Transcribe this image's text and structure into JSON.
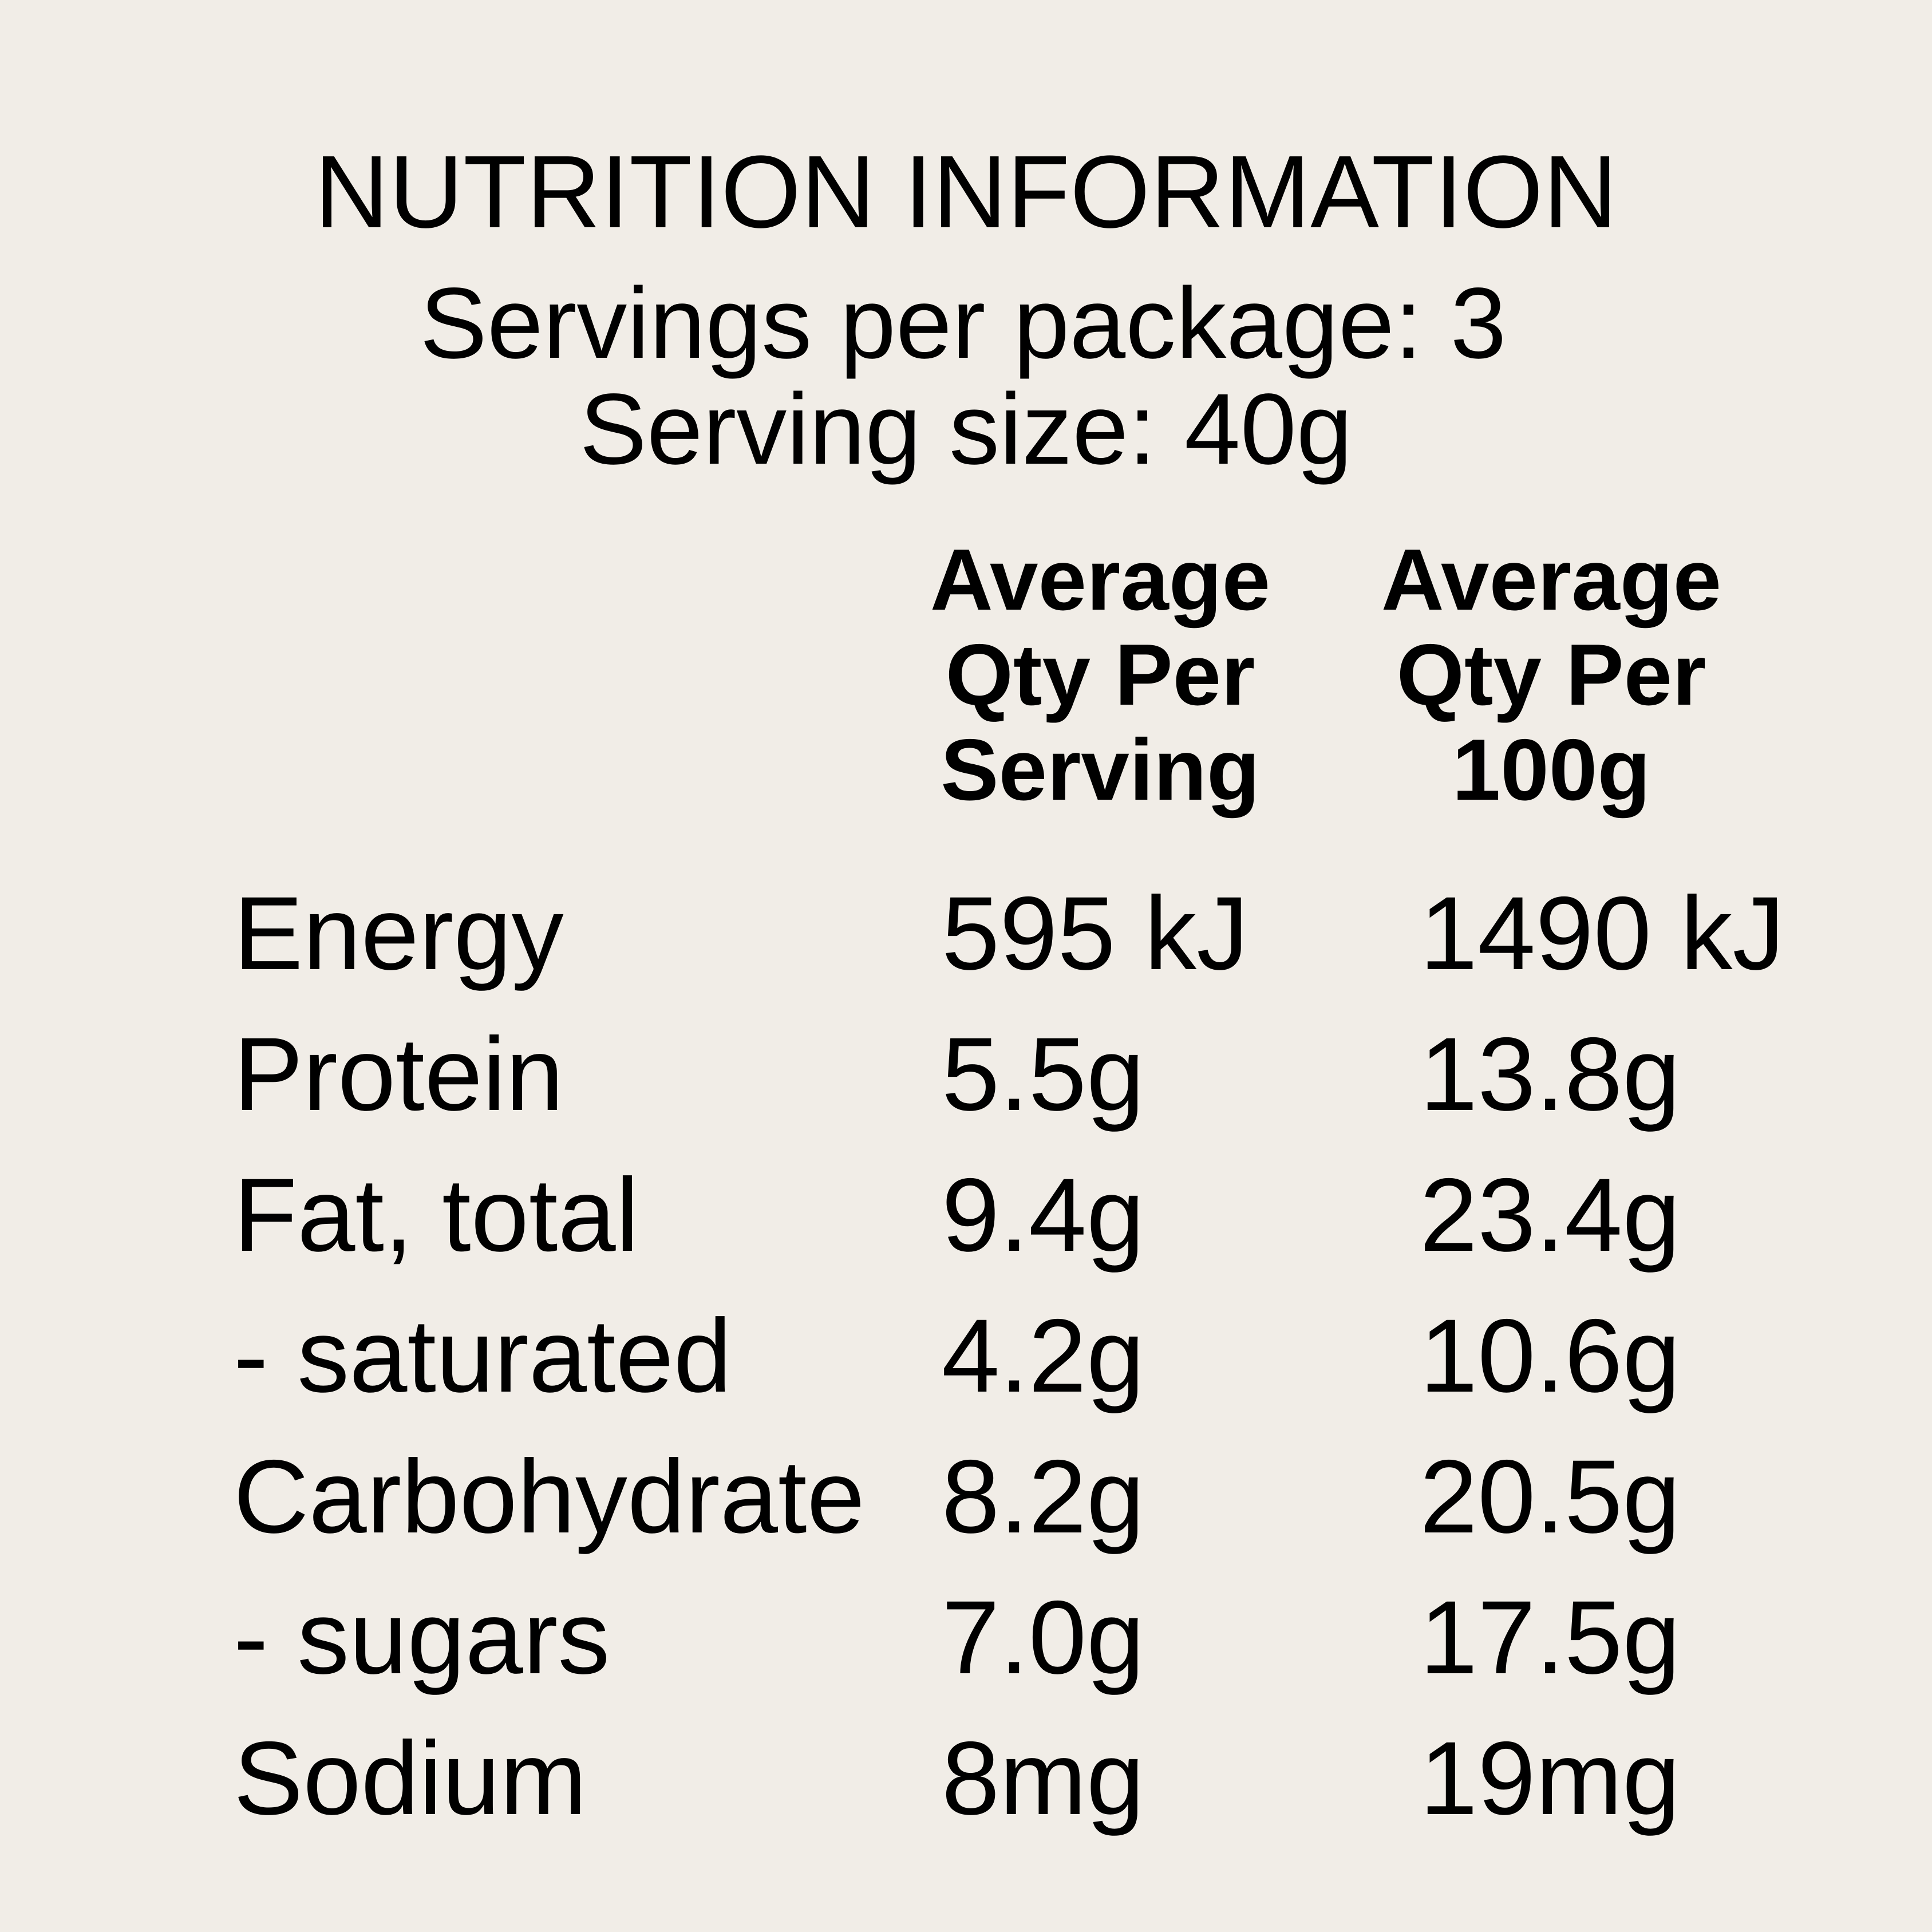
{
  "label": {
    "title": "NUTRITION INFORMATION",
    "servings_per_package": "Servings per package: 3",
    "serving_size": "Serving size: 40g",
    "columns": [
      {
        "lines": [
          "Average",
          "Qty Per",
          "Serving"
        ]
      },
      {
        "lines": [
          "Average",
          "Qty Per",
          "100g"
        ]
      }
    ],
    "rows": [
      {
        "name": "Energy",
        "per_serving": "595 kJ",
        "per_100g": "1490 kJ"
      },
      {
        "name": "Protein",
        "per_serving": "5.5g",
        "per_100g": "13.8g"
      },
      {
        "name": "Fat, total",
        "per_serving": "9.4g",
        "per_100g": "23.4g"
      },
      {
        "name": "- saturated",
        "per_serving": "4.2g",
        "per_100g": "10.6g"
      },
      {
        "name": "Carbohydrate",
        "per_serving": "8.2g",
        "per_100g": "20.5g"
      },
      {
        "name": "- sugars",
        "per_serving": "7.0g",
        "per_100g": "17.5g"
      },
      {
        "name": "Sodium",
        "per_serving": "8mg",
        "per_100g": "19mg"
      }
    ]
  },
  "colors": {
    "background": "#f1ede7",
    "text": "#000000"
  }
}
